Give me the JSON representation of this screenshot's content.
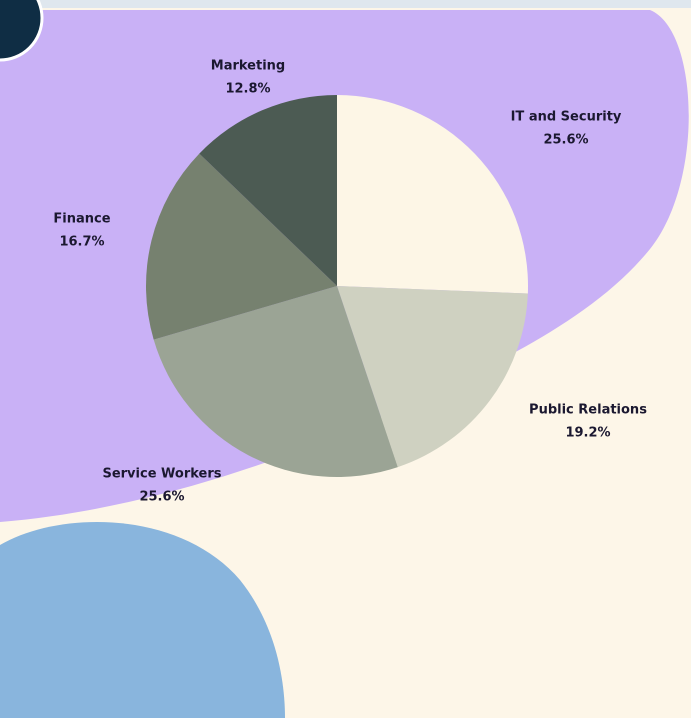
{
  "chart_data": {
    "type": "pie",
    "categories": [
      "IT and Security",
      "Public Relations",
      "Service Workers",
      "Finance",
      "Marketing"
    ],
    "values": [
      25.6,
      19.2,
      25.6,
      16.7,
      12.8
    ],
    "value_labels": [
      "25.6%",
      "19.2%",
      "25.6%",
      "16.7%",
      "12.8%"
    ],
    "colors": [
      "#fdf6e6",
      "#cfd1c1",
      "#9ba495",
      "#76816f",
      "#4c5b53"
    ]
  }
}
